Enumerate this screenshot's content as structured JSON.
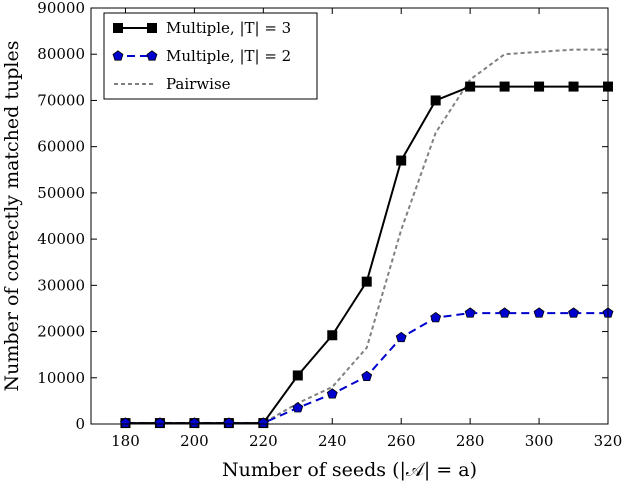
{
  "chart_data": {
    "type": "line",
    "xlabel": "Number of seeds (|𝒜| = a)",
    "ylabel": "Number of correctly matched tuples",
    "xlim": [
      170,
      320
    ],
    "ylim": [
      0,
      90000
    ],
    "xticks": [
      180,
      200,
      220,
      240,
      260,
      280,
      300,
      320
    ],
    "yticks": [
      0,
      10000,
      20000,
      30000,
      40000,
      50000,
      60000,
      70000,
      80000,
      90000
    ],
    "legend_position": "top-left",
    "series": [
      {
        "name": "Multiple, |T| = 3",
        "color": "#000000",
        "line_style": "solid",
        "marker": "square",
        "x": [
          180,
          190,
          200,
          210,
          220,
          230,
          240,
          250,
          260,
          270,
          280,
          290,
          300,
          310,
          320
        ],
        "values": [
          200,
          200,
          200,
          200,
          200,
          10500,
          19200,
          30800,
          57000,
          70000,
          73000,
          73000,
          73000,
          73000,
          73000
        ]
      },
      {
        "name": "Multiple, |T| = 2",
        "color": "#0000cc",
        "line_style": "dashed",
        "marker": "pentagon",
        "x": [
          180,
          190,
          200,
          210,
          220,
          230,
          240,
          250,
          260,
          270,
          280,
          290,
          300,
          310,
          320
        ],
        "values": [
          200,
          200,
          200,
          200,
          200,
          3500,
          6500,
          10300,
          18700,
          23000,
          24000,
          24000,
          24000,
          24000,
          24000
        ]
      },
      {
        "name": "Pairwise",
        "color": "#808080",
        "line_style": "dotted",
        "marker": "none",
        "x": [
          180,
          190,
          200,
          210,
          220,
          230,
          240,
          250,
          260,
          270,
          280,
          290,
          300,
          310,
          320
        ],
        "values": [
          200,
          200,
          200,
          200,
          200,
          4500,
          8000,
          16500,
          42000,
          63000,
          74500,
          80000,
          80500,
          81000,
          81000
        ]
      }
    ]
  }
}
